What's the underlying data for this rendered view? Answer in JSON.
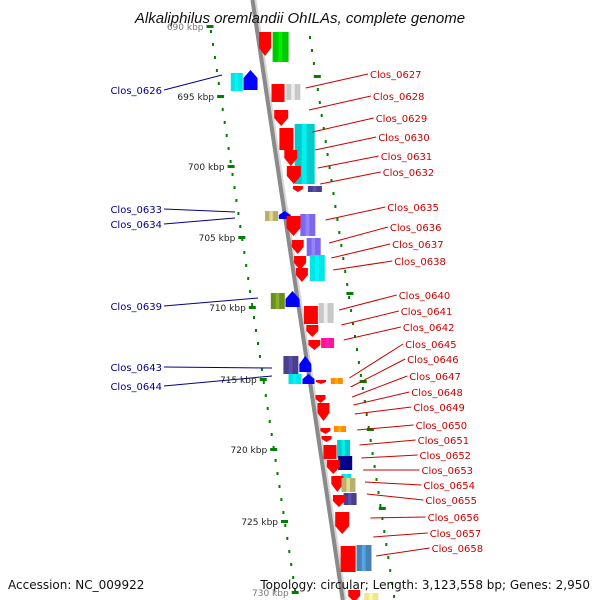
{
  "title": "Alkaliphilus oremlandii OhILAs, complete genome",
  "footer": {
    "accession": "Accession: NC_009922",
    "topology": "Topology: circular; Length: 3,123,558 bp; Genes: 2,950"
  },
  "kbp_labels": [
    "690 kbp",
    "695 kbp",
    "700 kbp",
    "705 kbp",
    "710 kbp",
    "715 kbp",
    "720 kbp",
    "725 kbp",
    "730 kbp"
  ],
  "colors": {
    "forward_label": "#cc0000",
    "reverse_label": "#00008b",
    "backbone": "#8a8a8a",
    "ticks": "#008000"
  },
  "reverse_genes": [
    "Clos_0626",
    "Clos_0633",
    "Clos_0634",
    "Clos_0639",
    "Clos_0643",
    "Clos_0644"
  ],
  "forward_genes": [
    "Clos_0627",
    "Clos_0628",
    "Clos_0629",
    "Clos_0630",
    "Clos_0631",
    "Clos_0632",
    "Clos_0635",
    "Clos_0636",
    "Clos_0637",
    "Clos_0638",
    "Clos_0640",
    "Clos_0641",
    "Clos_0642",
    "Clos_0645",
    "Clos_0646",
    "Clos_0647",
    "Clos_0648",
    "Clos_0649",
    "Clos_0650",
    "Clos_0651",
    "Clos_0652",
    "Clos_0653",
    "Clos_0654",
    "Clos_0655",
    "Clos_0656",
    "Clos_0657",
    "Clos_0658"
  ]
}
